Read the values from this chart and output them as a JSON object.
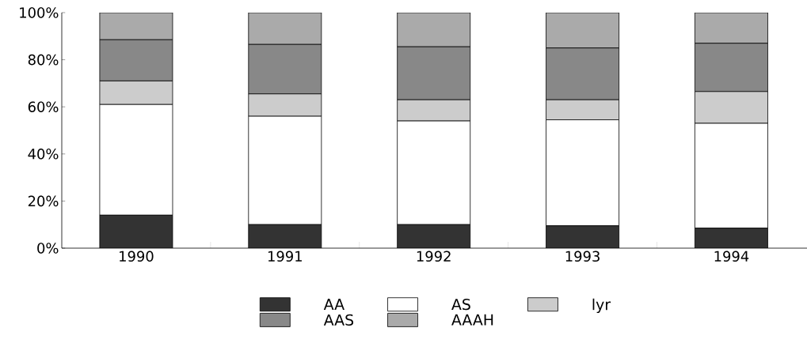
{
  "chart_data": {
    "type": "bar",
    "stacked": true,
    "categories": [
      "1990",
      "1991",
      "1992",
      "1993",
      "1994"
    ],
    "series": [
      {
        "name": "AA",
        "color": "#333333",
        "values": [
          14,
          10,
          10,
          9.5,
          8.5
        ]
      },
      {
        "name": "AS",
        "color": "#ffffff",
        "values": [
          47,
          46,
          44,
          45,
          44.5
        ]
      },
      {
        "name": "lyr",
        "color": "#cccccc",
        "values": [
          10,
          9.5,
          9,
          8.5,
          13.5
        ]
      },
      {
        "name": "AAS",
        "color": "#888888",
        "values": [
          17.5,
          21,
          22.5,
          22,
          20.5
        ]
      },
      {
        "name": "AAAH",
        "color": "#aaaaaa",
        "values": [
          11.5,
          13.5,
          14.5,
          15,
          13
        ]
      }
    ],
    "ylim": [
      0,
      100
    ],
    "yticks": [
      {
        "value": 0,
        "label": "0%"
      },
      {
        "value": 20,
        "label": "20%"
      },
      {
        "value": 40,
        "label": "40%"
      },
      {
        "value": 60,
        "label": "60%"
      },
      {
        "value": 80,
        "label": "80%"
      },
      {
        "value": 100,
        "label": "100%"
      }
    ],
    "legend": "bottom",
    "grid": false
  }
}
